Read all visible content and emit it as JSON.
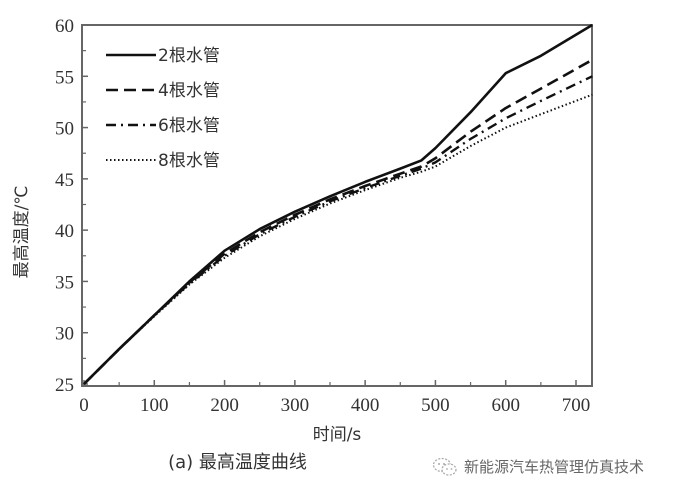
{
  "chart_data": {
    "type": "line",
    "title": "",
    "caption": "(a) 最高温度曲线",
    "xlabel": "时间/s",
    "ylabel": "最高温度/℃",
    "xlim": [
      0,
      723
    ],
    "ylim": [
      25,
      60
    ],
    "xticks": [
      0,
      100,
      200,
      300,
      400,
      500,
      600,
      700
    ],
    "yticks": [
      25,
      30,
      35,
      40,
      45,
      50,
      55,
      60
    ],
    "grid": false,
    "legend_position": "upper-left",
    "x": [
      0,
      50,
      100,
      150,
      200,
      250,
      300,
      350,
      400,
      450,
      480,
      500,
      550,
      600,
      650,
      723
    ],
    "series": [
      {
        "name": "2根水管",
        "style": "solid",
        "values": [
          25,
          28.4,
          31.7,
          35.0,
          38.0,
          40.1,
          41.8,
          43.3,
          44.7,
          46.0,
          46.8,
          48.0,
          51.5,
          55.3,
          57.0,
          60.0
        ]
      },
      {
        "name": "4根水管",
        "style": "dashed",
        "values": [
          25,
          28.4,
          31.7,
          34.9,
          37.7,
          39.8,
          41.5,
          43.0,
          44.3,
          45.5,
          46.2,
          47.0,
          49.6,
          51.9,
          53.8,
          56.6
        ]
      },
      {
        "name": "6根水管",
        "style": "dashdot",
        "values": [
          25,
          28.4,
          31.7,
          34.8,
          37.5,
          39.6,
          41.3,
          42.8,
          44.1,
          45.3,
          46.0,
          46.6,
          48.9,
          50.9,
          52.6,
          55.0
        ]
      },
      {
        "name": "8根水管",
        "style": "dotted",
        "values": [
          25,
          28.4,
          31.6,
          34.7,
          37.3,
          39.4,
          41.1,
          42.6,
          43.9,
          45.1,
          45.7,
          46.2,
          48.2,
          50.0,
          51.3,
          53.2
        ]
      }
    ]
  },
  "caption": "(a) 最高温度曲线",
  "watermark": {
    "icon": "wechat-icon",
    "text": "新能源汽车热管理仿真技术"
  }
}
